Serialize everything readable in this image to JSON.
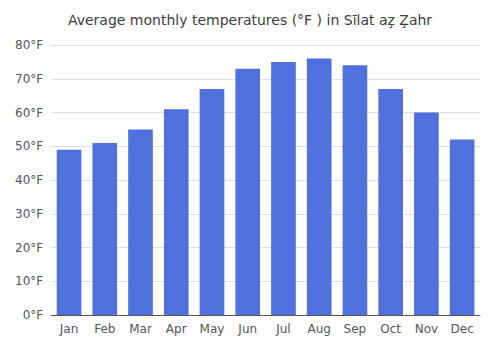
{
  "chart_data": {
    "type": "bar",
    "title": "Average monthly temperatures (°F ) in Sīlat az̧ Z̧ahr",
    "categories": [
      "Jan",
      "Feb",
      "Mar",
      "Apr",
      "May",
      "Jun",
      "Jul",
      "Aug",
      "Sep",
      "Oct",
      "Nov",
      "Dec"
    ],
    "values": [
      49,
      51,
      55,
      61,
      67,
      73,
      75,
      76,
      74,
      67,
      60,
      52
    ],
    "ylim": [
      0,
      80
    ],
    "yticks": [
      {
        "value": 0,
        "label": "0°F"
      },
      {
        "value": 10,
        "label": "10°F"
      },
      {
        "value": 20,
        "label": "20°F"
      },
      {
        "value": 30,
        "label": "30°F"
      },
      {
        "value": 40,
        "label": "40°F"
      },
      {
        "value": 50,
        "label": "50°F"
      },
      {
        "value": 60,
        "label": "60°F"
      },
      {
        "value": 70,
        "label": "70°F"
      },
      {
        "value": 80,
        "label": "80°F"
      }
    ],
    "grid": true
  }
}
